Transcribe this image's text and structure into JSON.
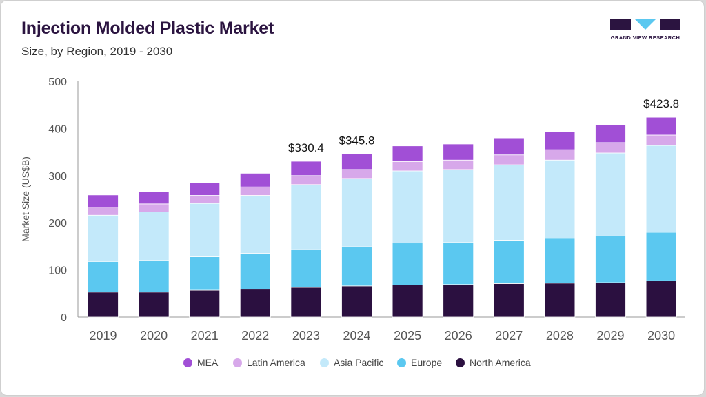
{
  "header": {
    "title": "Injection Molded Plastic Market",
    "subtitle": "Size, by Region, 2019 - 2030"
  },
  "logo": {
    "text": "GRAND VIEW RESEARCH",
    "colors": {
      "dark": "#2b1440",
      "accent": "#5bc8f0"
    }
  },
  "chart_data": {
    "type": "bar",
    "stacked": true,
    "title": "Injection Molded Plastic Market",
    "subtitle": "Size, by Region, 2019 - 2030",
    "xlabel": "",
    "ylabel": "Market Size (US$B)",
    "ylim": [
      0,
      500
    ],
    "yticks": [
      0,
      100,
      200,
      300,
      400,
      500
    ],
    "categories": [
      "2019",
      "2020",
      "2021",
      "2022",
      "2023",
      "2024",
      "2025",
      "2026",
      "2027",
      "2028",
      "2029",
      "2030"
    ],
    "series": [
      {
        "name": "North America",
        "color": "#2b1040",
        "values": [
          53,
          53,
          57,
          59,
          63,
          66,
          68,
          69,
          71,
          72,
          73,
          77
        ]
      },
      {
        "name": "Europe",
        "color": "#5bc8f0",
        "values": [
          65,
          67,
          71,
          76,
          80,
          83,
          89,
          89,
          92,
          95,
          99,
          103
        ]
      },
      {
        "name": "Asia Pacific",
        "color": "#c3e9fa",
        "values": [
          98,
          103,
          113,
          123,
          138,
          145,
          153,
          155,
          160,
          166,
          176,
          184
        ]
      },
      {
        "name": "Latin America",
        "color": "#d7a8ea",
        "values": [
          17,
          17,
          17,
          18,
          19,
          19,
          20,
          20,
          21,
          22,
          22,
          22
        ]
      },
      {
        "name": "MEA",
        "color": "#a14fd6",
        "values": [
          26,
          26,
          27,
          29,
          30.4,
          32.8,
          33,
          34,
          36,
          38,
          38,
          37.8
        ]
      }
    ],
    "annotations": [
      {
        "category": "2023",
        "label": "$330.4"
      },
      {
        "category": "2024",
        "label": "$345.8"
      },
      {
        "category": "2030",
        "label": "$423.8"
      }
    ],
    "legend": {
      "placement": "bottom",
      "order": [
        "MEA",
        "Latin America",
        "Asia Pacific",
        "Europe",
        "North America"
      ]
    }
  }
}
